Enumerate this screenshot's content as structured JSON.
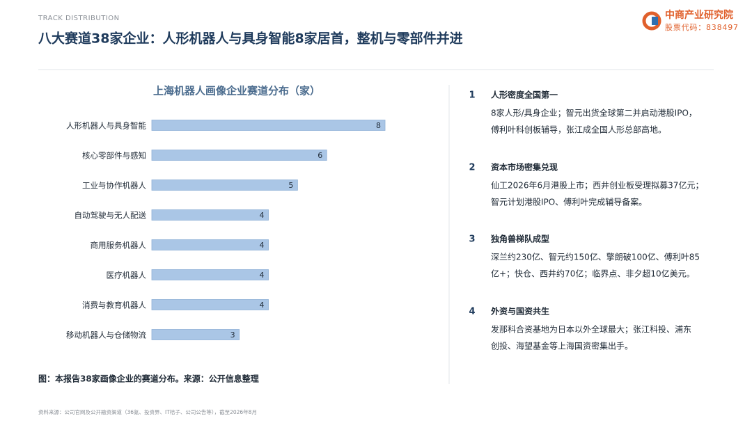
{
  "header": {
    "kicker": "TRACK DISTRIBUTION",
    "title": "八大赛道38家企业：人形机器人与具身智能8家居首，整机与零部件并进",
    "logo_name": "中商产业研究院",
    "logo_code": "股票代码：838497"
  },
  "chart_data": {
    "type": "hbar",
    "title": "上海机器人画像企业赛道分布（家）",
    "categories": [
      "人形机器人与具身智能",
      "核心零部件与感知",
      "工业与协作机器人",
      "自动驾驶与无人配送",
      "商用服务机器人",
      "医疗机器人",
      "消费与教育机器人",
      "移动机器人与仓储物流"
    ],
    "values": [
      8,
      6,
      5,
      4,
      4,
      4,
      4,
      3
    ],
    "color": "#aac6e6"
  },
  "caption": "图：本报告38家画像企业的赛道分布。来源：公开信息整理",
  "points": [
    {
      "number": "1",
      "heading": "人形密度全国第一",
      "lines": [
        "8家人形/具身企业；智元出货全球第二并启动港股IPO，",
        "傅利叶科创板辅导，张江成全国人形总部高地。"
      ]
    },
    {
      "number": "2",
      "heading": "资本市场密集兑现",
      "lines": [
        "仙工2026年6月港股上市；西井创业板受理拟募37亿元；",
        "智元计划港股IPO、傅利叶完成辅导备案。"
      ]
    },
    {
      "number": "3",
      "heading": "独角兽梯队成型",
      "lines": [
        "深兰约230亿、智元约150亿、擎朗破100亿、傅利叶85",
        "亿+；快仓、西井约70亿；临界点、非夕超10亿美元。"
      ]
    },
    {
      "number": "4",
      "heading": "外资与国资共生",
      "lines": [
        "发那科合资基地为日本以外全球最大；张江科投、浦东",
        "创投、海望基金等上海国资密集出手。"
      ]
    }
  ],
  "footer": "资料来源：公司官网及公开融资渠道（36氪、投资界、IT桔子、公司公告等），截至2026年8月"
}
